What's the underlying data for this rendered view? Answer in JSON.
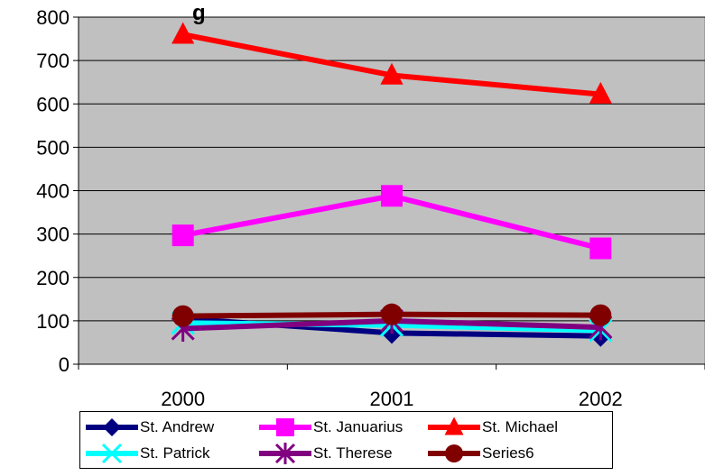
{
  "chart_data": {
    "type": "line",
    "title": "g",
    "xlabel": "",
    "ylabel": "",
    "categories": [
      "2000",
      "2001",
      "2002"
    ],
    "ylim": [
      0,
      800
    ],
    "yticks": [
      0,
      100,
      200,
      300,
      400,
      500,
      600,
      700,
      800
    ],
    "grid": true,
    "plot_background": "#c0c0c0",
    "legend_position": "bottom",
    "series": [
      {
        "name": "St. Andrew",
        "values": [
          105,
          72,
          65
        ],
        "color": "#000080",
        "marker": "diamond"
      },
      {
        "name": "St. Januarius",
        "values": [
          297,
          388,
          267
        ],
        "color": "#ff00ff",
        "marker": "square"
      },
      {
        "name": "St. Michael",
        "values": [
          760,
          666,
          622
        ],
        "color": "#ff0000",
        "marker": "triangle"
      },
      {
        "name": "St. Patrick",
        "values": [
          95,
          90,
          78
        ],
        "color": "#00ffff",
        "marker": "x"
      },
      {
        "name": "St. Therese",
        "values": [
          82,
          100,
          85
        ],
        "color": "#800080",
        "marker": "star"
      },
      {
        "name": "Series6",
        "values": [
          111,
          115,
          113
        ],
        "color": "#800000",
        "marker": "circle"
      }
    ]
  }
}
